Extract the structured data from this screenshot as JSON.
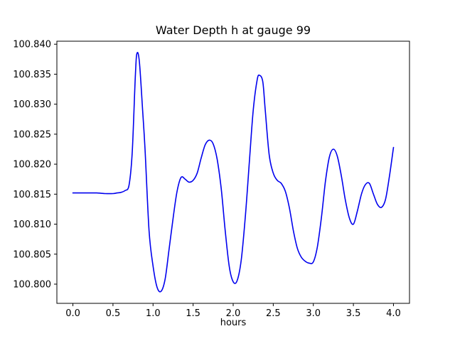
{
  "figure": {
    "background": "#ffffff"
  },
  "chart_data": {
    "type": "line",
    "title": "Water Depth h at gauge 99",
    "xlabel": "hours",
    "ylabel": "",
    "legend": "none",
    "grid": false,
    "line_color": "#0000ee",
    "axes_color": "#000000",
    "xlim": [
      -0.2,
      4.2
    ],
    "ylim": [
      100.7968,
      100.8405
    ],
    "xtick_values": [
      0.0,
      0.5,
      1.0,
      1.5,
      2.0,
      2.5,
      3.0,
      3.5,
      4.0
    ],
    "xtick_labels": [
      "0.0",
      "0.5",
      "1.0",
      "1.5",
      "2.0",
      "2.5",
      "3.0",
      "3.5",
      "4.0"
    ],
    "ytick_values": [
      100.8,
      100.805,
      100.81,
      100.815,
      100.82,
      100.825,
      100.83,
      100.835,
      100.84
    ],
    "ytick_labels": [
      "100.800",
      "100.805",
      "100.810",
      "100.815",
      "100.820",
      "100.825",
      "100.830",
      "100.835",
      "100.840"
    ],
    "x": [
      0.0,
      0.1,
      0.2,
      0.3,
      0.4,
      0.5,
      0.55,
      0.6,
      0.65,
      0.7,
      0.74,
      0.78,
      0.8,
      0.83,
      0.87,
      0.9,
      0.95,
      1.0,
      1.05,
      1.1,
      1.15,
      1.2,
      1.25,
      1.3,
      1.35,
      1.4,
      1.45,
      1.5,
      1.55,
      1.6,
      1.65,
      1.7,
      1.75,
      1.8,
      1.85,
      1.9,
      1.95,
      2.0,
      2.05,
      2.1,
      2.15,
      2.2,
      2.25,
      2.3,
      2.33,
      2.37,
      2.4,
      2.45,
      2.5,
      2.55,
      2.6,
      2.65,
      2.7,
      2.75,
      2.8,
      2.85,
      2.9,
      2.95,
      3.0,
      3.05,
      3.1,
      3.15,
      3.2,
      3.25,
      3.3,
      3.35,
      3.4,
      3.45,
      3.5,
      3.55,
      3.6,
      3.65,
      3.7,
      3.75,
      3.8,
      3.85,
      3.9,
      3.95,
      4.0
    ],
    "y": [
      100.8152,
      100.8152,
      100.8152,
      100.8152,
      100.8151,
      100.8151,
      100.8152,
      100.8153,
      100.8156,
      100.8165,
      100.822,
      100.835,
      100.8385,
      100.837,
      100.829,
      100.8225,
      100.809,
      100.803,
      100.7995,
      100.7988,
      100.8008,
      100.8058,
      100.811,
      100.8155,
      100.8178,
      100.8175,
      100.817,
      100.8173,
      100.8185,
      100.821,
      100.8232,
      100.824,
      100.8234,
      100.8208,
      100.816,
      100.809,
      100.803,
      100.8004,
      100.8006,
      100.804,
      100.811,
      100.82,
      100.829,
      100.8341,
      100.8348,
      100.8337,
      100.829,
      100.8215,
      100.8185,
      100.8173,
      100.8168,
      100.8155,
      100.8128,
      100.809,
      100.806,
      100.8045,
      100.8038,
      100.8035,
      100.8037,
      100.8062,
      100.811,
      100.817,
      100.8212,
      100.8225,
      100.8213,
      100.818,
      100.814,
      100.811,
      100.81,
      100.8122,
      100.815,
      100.8166,
      100.8168,
      100.815,
      100.8133,
      100.8128,
      100.8141,
      100.818,
      100.8228
    ]
  }
}
